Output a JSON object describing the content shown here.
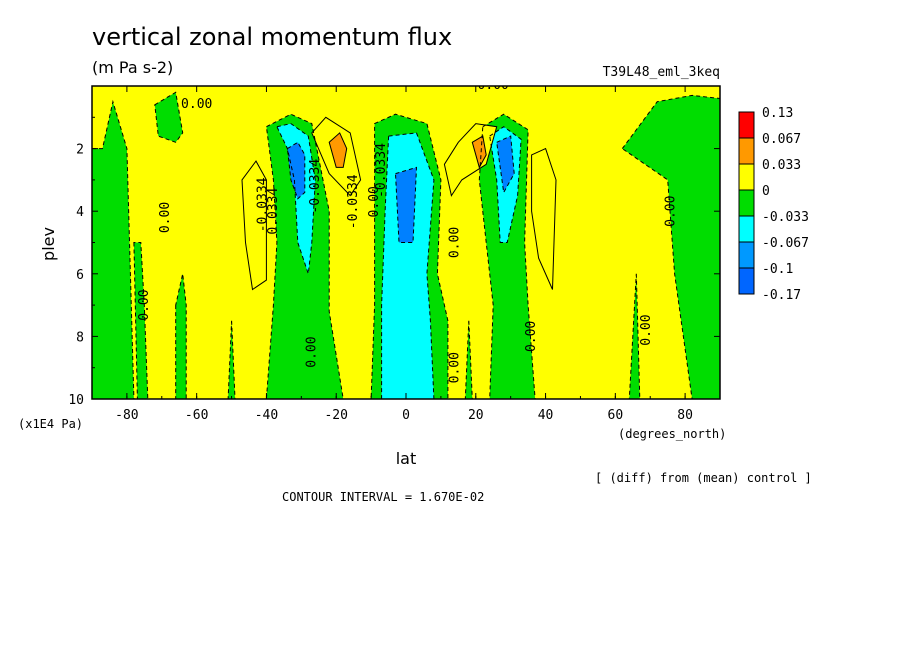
{
  "chart_data": {
    "type": "contour",
    "title": "vertical zonal momentum flux",
    "units": "(m Pa s-2)",
    "run_label": "T39L48_eml_3keq",
    "xlabel": "lat",
    "xunits": "(degrees_north)",
    "ylabel": "plev",
    "yunits": "(x1E4 Pa)",
    "xlim": [
      -90,
      90
    ],
    "ylim": [
      10,
      0
    ],
    "xticks": [
      -80,
      -60,
      -40,
      -20,
      0,
      20,
      40,
      60,
      80
    ],
    "yticks": [
      2,
      4,
      6,
      8,
      10
    ],
    "xtick_labels": [
      "-80",
      "-60",
      "-40",
      "-20",
      "0",
      "20",
      "40",
      "60",
      "80"
    ],
    "ytick_labels": [
      "2",
      "4",
      "6",
      "8",
      "10"
    ],
    "diff_note": "[ (diff) from (mean) control ]",
    "contour_interval_text": "CONTOUR INTERVAL = 1.670E-02",
    "legend": {
      "levels": [
        "0.13",
        "0.067",
        "0.033",
        "0",
        "-0.033",
        "-0.067",
        "-0.1",
        "-0.17"
      ],
      "colors": [
        "#ff0000",
        "#ff9900",
        "#ffff00",
        "#00dd00",
        "#00ffff",
        "#0099ff",
        "#0000ff",
        "#0000ff"
      ]
    },
    "contour_labels": [
      {
        "text": "0.00",
        "lat": -60,
        "plev": 0.7,
        "rotate": 0
      },
      {
        "text": "0.00",
        "lat": 25,
        "plev": 0.1,
        "rotate": 0
      },
      {
        "text": "0.00",
        "lat": -74,
        "plev": 7,
        "rotate": -90
      },
      {
        "text": "0.00",
        "lat": -68,
        "plev": 4.2,
        "rotate": -90
      },
      {
        "text": "-0.0334",
        "lat": -40,
        "plev": 3.8,
        "rotate": -90
      },
      {
        "text": "-0.0334",
        "lat": -25,
        "plev": 3.2,
        "rotate": -90
      },
      {
        "text": "0.0334",
        "lat": -37,
        "plev": 4.0,
        "rotate": -90
      },
      {
        "text": "-0.0334",
        "lat": -14,
        "plev": 3.7,
        "rotate": -90
      },
      {
        "text": "0.00",
        "lat": -8,
        "plev": 3.7,
        "rotate": -90
      },
      {
        "text": "-0.0334",
        "lat": -6,
        "plev": 2.7,
        "rotate": -90
      },
      {
        "text": "0.00",
        "lat": -26,
        "plev": 8.5,
        "rotate": -90
      },
      {
        "text": "0.00",
        "lat": 15,
        "plev": 5.0,
        "rotate": -90
      },
      {
        "text": "0.00",
        "lat": 15,
        "plev": 9.0,
        "rotate": -90
      },
      {
        "text": "0.00",
        "lat": 37,
        "plev": 8.0,
        "rotate": -90
      },
      {
        "text": "0.00",
        "lat": 77,
        "plev": 4.0,
        "rotate": -90
      },
      {
        "text": "0.00",
        "lat": 70,
        "plev": 7.8,
        "rotate": -90
      }
    ],
    "regions": [
      {
        "name": "green-polar-south",
        "value": -0.02,
        "points": [
          [
            -90,
            2
          ],
          [
            -87,
            2
          ],
          [
            -84,
            0.5
          ],
          [
            -80,
            2
          ],
          [
            -78,
            10
          ],
          [
            -90,
            10
          ]
        ]
      },
      {
        "name": "green-south-bump",
        "value": -0.02,
        "points": [
          [
            -72,
            0.6
          ],
          [
            -66,
            0.2
          ],
          [
            -64,
            1.5
          ],
          [
            -66,
            1.8
          ],
          [
            -71,
            1.6
          ]
        ]
      },
      {
        "name": "green-south-stripe-a",
        "value": -0.02,
        "points": [
          [
            -78,
            5
          ],
          [
            -77,
            10
          ],
          [
            -74,
            10
          ],
          [
            -75,
            7
          ],
          [
            -76,
            5
          ]
        ]
      },
      {
        "name": "green-south-stripe-b",
        "value": -0.02,
        "points": [
          [
            -66,
            7
          ],
          [
            -66,
            10
          ],
          [
            -63,
            10
          ],
          [
            -63,
            7
          ],
          [
            -64,
            6
          ]
        ]
      },
      {
        "name": "green-south-stripe-c",
        "value": -0.02,
        "points": [
          [
            -50,
            7.5
          ],
          [
            -49,
            10
          ],
          [
            -51,
            10
          ]
        ]
      },
      {
        "name": "green-south-jet",
        "value": -0.02,
        "points": [
          [
            -40,
            1.3
          ],
          [
            -33,
            0.9
          ],
          [
            -27,
            1.2
          ],
          [
            -22,
            4
          ],
          [
            -22,
            7.2
          ],
          [
            -18,
            10
          ],
          [
            -40,
            10
          ],
          [
            -38,
            7
          ],
          [
            -37,
            5
          ],
          [
            -38,
            3
          ]
        ]
      },
      {
        "name": "cyan-south-jet",
        "value": -0.05,
        "points": [
          [
            -37,
            1.3
          ],
          [
            -33,
            1.2
          ],
          [
            -28,
            1.6
          ],
          [
            -26,
            3
          ],
          [
            -27,
            5
          ],
          [
            -28,
            6
          ],
          [
            -31,
            5
          ],
          [
            -32,
            3
          ],
          [
            -34,
            2
          ]
        ]
      },
      {
        "name": "blue-south-jet",
        "value": -0.085,
        "points": [
          [
            -34,
            2
          ],
          [
            -31,
            1.8
          ],
          [
            -29,
            2.2
          ],
          [
            -29,
            3.4
          ],
          [
            -31,
            3.6
          ],
          [
            -33,
            3
          ]
        ]
      },
      {
        "name": "green-equator",
        "value": -0.02,
        "points": [
          [
            -9,
            1.2
          ],
          [
            -3,
            0.9
          ],
          [
            6,
            1.2
          ],
          [
            10,
            3
          ],
          [
            9,
            6
          ],
          [
            12,
            7.5
          ],
          [
            12,
            10
          ],
          [
            -10,
            10
          ],
          [
            -9,
            7
          ],
          [
            -9,
            4
          ]
        ]
      },
      {
        "name": "cyan-equator",
        "value": -0.05,
        "points": [
          [
            -5,
            1.6
          ],
          [
            3,
            1.5
          ],
          [
            8,
            3
          ],
          [
            6,
            6
          ],
          [
            7,
            7.5
          ],
          [
            8,
            10
          ],
          [
            -7,
            10
          ],
          [
            -7,
            7
          ],
          [
            -6,
            4
          ]
        ]
      },
      {
        "name": "blue-equator",
        "value": -0.085,
        "points": [
          [
            -3,
            2.8
          ],
          [
            3,
            2.6
          ],
          [
            2,
            5
          ],
          [
            -2,
            5
          ]
        ]
      },
      {
        "name": "green-north-jet",
        "value": -0.02,
        "points": [
          [
            22,
            1.3
          ],
          [
            28,
            0.9
          ],
          [
            35,
            1.4
          ],
          [
            34,
            5
          ],
          [
            35,
            7
          ],
          [
            37,
            10
          ],
          [
            24,
            10
          ],
          [
            25,
            7
          ],
          [
            23,
            5
          ],
          [
            21,
            3
          ]
        ]
      },
      {
        "name": "cyan-north-jet",
        "value": -0.05,
        "points": [
          [
            24,
            1.6
          ],
          [
            28,
            1.3
          ],
          [
            33,
            1.7
          ],
          [
            32,
            3.5
          ],
          [
            29,
            5
          ],
          [
            27,
            5
          ],
          [
            26,
            3
          ]
        ]
      },
      {
        "name": "blue-north-jet",
        "value": -0.085,
        "points": [
          [
            26,
            1.8
          ],
          [
            30,
            1.6
          ],
          [
            31,
            2.8
          ],
          [
            28,
            3.4
          ],
          [
            27,
            2.6
          ]
        ]
      },
      {
        "name": "green-north-stripe",
        "value": -0.02,
        "points": [
          [
            18,
            7.5
          ],
          [
            19,
            10
          ],
          [
            17,
            10
          ]
        ]
      },
      {
        "name": "green-north-polar",
        "value": -0.02,
        "points": [
          [
            62,
            2
          ],
          [
            72,
            0.5
          ],
          [
            82,
            0.3
          ],
          [
            90,
            0.4
          ],
          [
            90,
            10
          ],
          [
            82,
            10
          ],
          [
            77,
            6
          ],
          [
            75,
            3
          ]
        ]
      },
      {
        "name": "green-north-stripe-b",
        "value": -0.02,
        "points": [
          [
            66,
            6
          ],
          [
            67,
            10
          ],
          [
            64,
            10
          ]
        ]
      },
      {
        "name": "orange-south",
        "value": 0.045,
        "points": [
          [
            -47,
            3
          ],
          [
            -43,
            2.4
          ],
          [
            -40,
            3
          ],
          [
            -40,
            6.2
          ],
          [
            -44,
            6.5
          ],
          [
            -46,
            5
          ]
        ]
      },
      {
        "name": "orange-south-upper",
        "value": 0.045,
        "points": [
          [
            -27,
            1.5
          ],
          [
            -23,
            1
          ],
          [
            -16,
            1.5
          ],
          [
            -13,
            3
          ],
          [
            -16,
            3.5
          ],
          [
            -22,
            2.8
          ]
        ]
      },
      {
        "name": "red-south",
        "value": 0.1,
        "points": [
          [
            -22,
            1.8
          ],
          [
            -19,
            1.5
          ],
          [
            -17,
            2
          ],
          [
            -18,
            2.6
          ],
          [
            -20,
            2.6
          ]
        ]
      },
      {
        "name": "orange-north-upper",
        "value": 0.045,
        "points": [
          [
            11,
            2.5
          ],
          [
            15,
            1.8
          ],
          [
            20,
            1.2
          ],
          [
            26,
            1.3
          ],
          [
            23,
            2.5
          ],
          [
            16,
            3
          ],
          [
            13,
            3.5
          ]
        ]
      },
      {
        "name": "red-north",
        "value": 0.1,
        "points": [
          [
            19,
            1.8
          ],
          [
            22,
            1.6
          ],
          [
            23,
            2.2
          ],
          [
            21,
            2.6
          ]
        ]
      },
      {
        "name": "orange-north",
        "value": 0.045,
        "points": [
          [
            36,
            2.2
          ],
          [
            40,
            2
          ],
          [
            43,
            3
          ],
          [
            42,
            6.5
          ],
          [
            38,
            5.5
          ],
          [
            36,
            4
          ]
        ]
      }
    ]
  }
}
